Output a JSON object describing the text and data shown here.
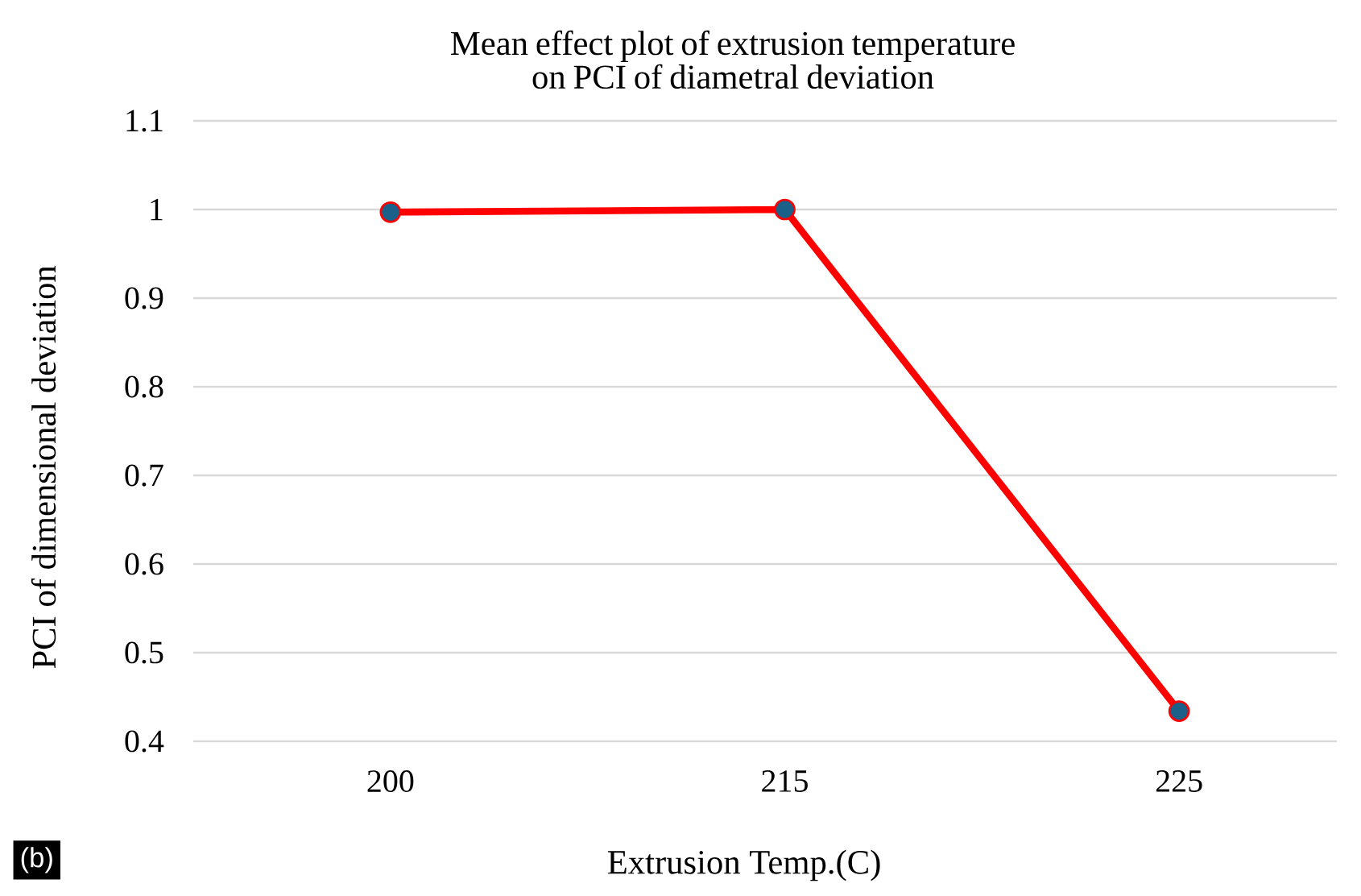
{
  "chart_data": {
    "type": "line",
    "title": "Mean effect plot of extrusion temperature on PCI of diametral deviation",
    "xlabel": "Extrusion Temp.(C)",
    "ylabel": "PCI of dimensional deviation",
    "categories": [
      "200",
      "215",
      "225"
    ],
    "series": [
      {
        "color": "#ff0000",
        "colors": [
          "#1a6088",
          "#1a6088",
          "#1a6088"
        ],
        "values": [
          0.997,
          1.0,
          0.434
        ]
      }
    ],
    "ylim": [
      0.4,
      1.1
    ],
    "yticks": [
      0.4,
      0.5,
      0.6,
      0.7,
      0.8,
      0.9,
      1,
      1.1
    ],
    "grid": "y",
    "marker": "circle",
    "line_style": "solid",
    "annotations": [
      "(b)"
    ]
  }
}
